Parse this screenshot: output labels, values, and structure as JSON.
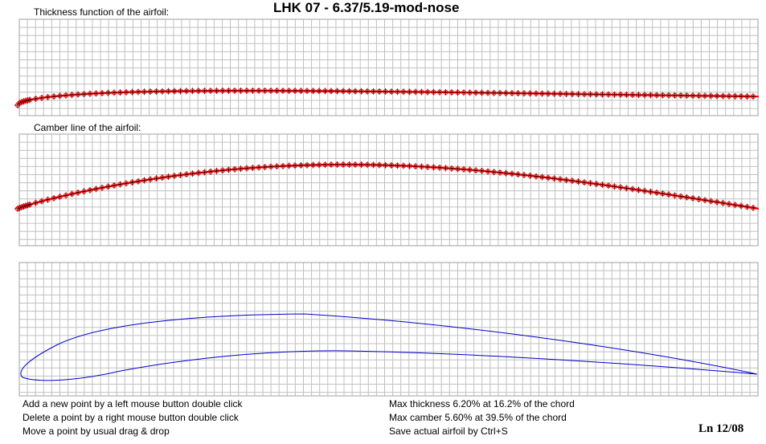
{
  "window": {
    "title": "LHK 07 - 6.37/5.19-mod-nose",
    "signature": "Ln 12/08"
  },
  "panels": {
    "thickness_label": "Thickness function of the airfoil:",
    "camber_label": "Camber line of the airfoil:"
  },
  "instructions": [
    "Add a new point by a left mouse button double click",
    "Delete a point by a right mouse button double click",
    "Move a point by usual drag & drop"
  ],
  "info": [
    "Max thickness 6.20% at 16.2% of the chord",
    "Max camber 5.60% at 39.5% of the chord",
    "Save actual airfoil by Ctrl+S"
  ],
  "colors": {
    "grid": "#c0c0c0",
    "control_points": "#ff0000",
    "point_marker": "#000000",
    "airfoil_outline": "#0000c8"
  },
  "point_marker_icon": "crosshair-icon",
  "airfoil_stats": {
    "max_thickness_percent": 6.2,
    "max_thickness_position_percent": 16.2,
    "max_camber_percent": 5.6,
    "max_camber_position_percent": 39.5
  }
}
